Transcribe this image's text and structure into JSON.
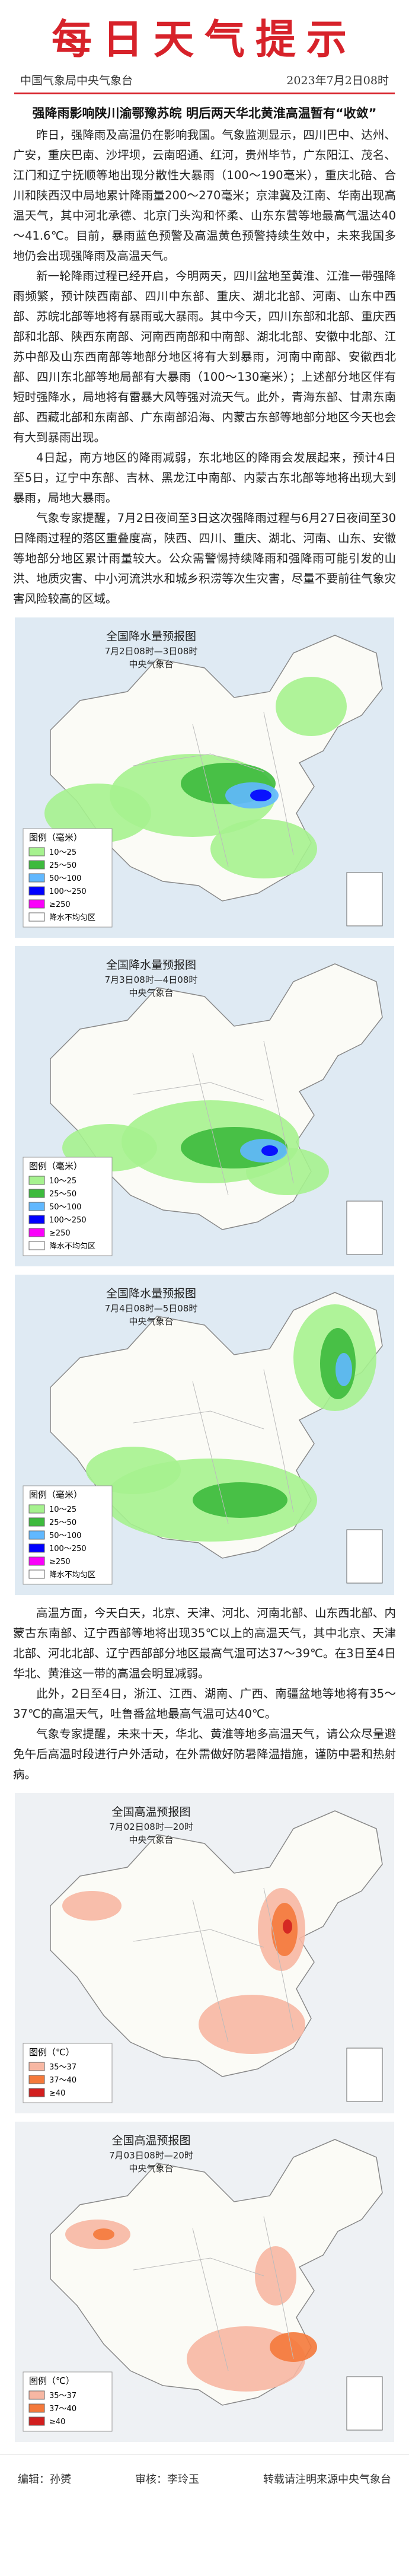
{
  "header": {
    "title": "每日天气提示",
    "org": "中国气象局中央气象台",
    "date": "2023年7月2日08时"
  },
  "headline": "强降雨影响陕川渝鄂豫苏皖 明后两天华北黄淮高温暂有“收敛”",
  "paragraphs_1": [
    "昨日，强降雨及高温仍在影响我国。气象监测显示，四川巴中、达州、广安，重庆巴南、沙坪坝，云南昭通、红河，贵州毕节，广东阳江、茂名、江门和辽宁抚顺等地出现分散性大暴雨（100～190毫米），重庆北碚、合川和陕西汉中局地累计降雨量200～270毫米；京津冀及江南、华南出现高温天气，其中河北承德、北京门头沟和怀柔、山东东营等地最高气温达40～41.6℃。目前，暴雨蓝色预警及高温黄色预警持续生效中，未来我国多地仍会出现强降雨及高温天气。",
    "新一轮降雨过程已经开启，今明两天，四川盆地至黄淮、江淮一带强降雨频繁，预计陕西南部、四川中东部、重庆、湖北北部、河南、山东中西部、苏皖北部等地将有暴雨或大暴雨。其中今天，四川东部和北部、重庆西部和北部、陕西东南部、河南西南部和中南部、湖北北部、安徽中北部、江苏中部及山东西南部等地部分地区将有大到暴雨，河南中南部、安徽西北部、四川东北部等地局部有大暴雨（100～130毫米）；上述部分地区伴有短时强降水，局地将有雷暴大风等强对流天气。此外，青海东部、甘肃东南部、西藏北部和东南部、广东南部沿海、内蒙古东部等地部分地区今天也会有大到暴雨出现。",
    "4日起，南方地区的降雨减弱，东北地区的降雨会发展起来，预计4日至5日，辽宁中东部、吉林、黑龙江中南部、内蒙古东北部等地将出现大到暴雨，局地大暴雨。",
    "气象专家提醒，7月2日夜间至3日这次强降雨过程与6月27日夜间至30日降雨过程的落区重叠度高，陕西、四川、重庆、湖北、河南、山东、安徽等地部分地区累计雨量较大。公众需警惕持续降雨和强降雨可能引发的山洪、地质灾害、中小河流洪水和城乡积涝等次生灾害，尽量不要前往气象灾害风险较高的区域。"
  ],
  "rain_maps": [
    {
      "title": "全国降水量预报图",
      "time": "7月2日08时—3日08时",
      "issuer": "中央气象台",
      "legend_title": "图例（毫米）",
      "legend": [
        "10～25",
        "25～50",
        "50～100",
        "100～250",
        "≥250",
        "降水不均匀区"
      ]
    },
    {
      "title": "全国降水量预报图",
      "time": "7月3日08时—4日08时",
      "issuer": "中央气象台",
      "legend_title": "图例（毫米）",
      "legend": [
        "10～25",
        "25～50",
        "50～100",
        "100～250",
        "≥250",
        "降水不均匀区"
      ]
    },
    {
      "title": "全国降水量预报图",
      "time": "7月4日08时—5日08时",
      "issuer": "中央气象台",
      "legend_title": "图例（毫米）",
      "legend": [
        "10～25",
        "25～50",
        "50～100",
        "100～250",
        "≥250",
        "降水不均匀区"
      ]
    }
  ],
  "paragraphs_2": [
    "高温方面，今天白天，北京、天津、河北、河南北部、山东西北部、内蒙古东南部、辽宁西部等地将出现35℃以上的高温天气，其中北京、天津北部、河北北部、辽宁西部部分地区最高气温可达37～39℃。在3日至4日华北、黄淮这一带的高温会明显减弱。",
    "此外，2日至4日，浙江、江西、湖南、广西、南疆盆地等地将有35～37℃的高温天气，吐鲁番盆地最高气温可达40℃。",
    "气象专家提醒，未来十天，华北、黄淮等地多高温天气，请公众尽量避免午后高温时段进行户外活动，在外需做好防暑降温措施，谨防中暑和热射病。"
  ],
  "heat_maps": [
    {
      "title": "全国高温预报图",
      "time": "7月02日08时—20时",
      "issuer": "中央气象台",
      "legend_title": "图例（℃）",
      "legend": [
        "35～37",
        "37～40",
        "≥40"
      ]
    },
    {
      "title": "全国高温预报图",
      "time": "7月03日08时—20时",
      "issuer": "中央气象台",
      "legend_title": "图例（℃）",
      "legend": [
        "35～37",
        "37～40",
        "≥40"
      ]
    }
  ],
  "footer": {
    "editor": "编辑：孙赟",
    "reviewer": "审核：李玲玉",
    "source": "转载请注明来源中央气象台"
  }
}
